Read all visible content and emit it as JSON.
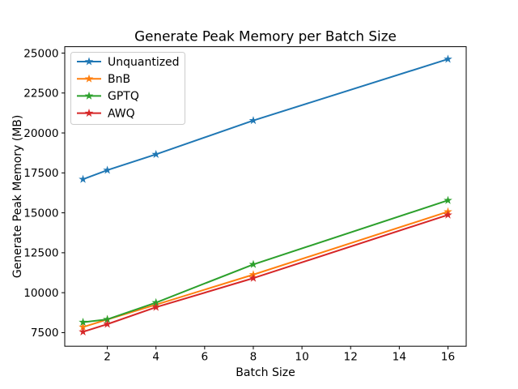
{
  "figure": {
    "background": "#ffffff",
    "axis_color": "#000000",
    "text_color": "#000000",
    "legend_border_color": "#cccccc",
    "legend_background": "#ffffff"
  },
  "chart_data": {
    "type": "line",
    "title": "Generate Peak Memory per Batch Size",
    "xlabel": "Batch Size",
    "ylabel": "Generate Peak Memory (MB)",
    "x": [
      1,
      2,
      4,
      8,
      16
    ],
    "series": [
      {
        "name": "Unquantized",
        "color": "#1f77b4",
        "values": [
          17100,
          17670,
          18660,
          20780,
          24620
        ]
      },
      {
        "name": "BnB",
        "color": "#ff7f0e",
        "values": [
          7850,
          8320,
          9250,
          11130,
          15070
        ]
      },
      {
        "name": "GPTQ",
        "color": "#2ca02c",
        "values": [
          8150,
          8330,
          9380,
          11770,
          15780
        ]
      },
      {
        "name": "AWQ",
        "color": "#d62728",
        "values": [
          7550,
          8030,
          9090,
          10910,
          14870
        ]
      }
    ],
    "marker": "star",
    "xticks": [
      2,
      4,
      6,
      8,
      10,
      12,
      14,
      16
    ],
    "yticks": [
      7500,
      10000,
      12500,
      15000,
      17500,
      20000,
      22500,
      25000
    ],
    "xlim": [
      0.25,
      16.75
    ],
    "ylim": [
      6650,
      25400
    ],
    "grid": false,
    "legend_position": "upper left",
    "legend_entries": [
      "Unquantized",
      "BnB",
      "GPTQ",
      "AWQ"
    ]
  }
}
